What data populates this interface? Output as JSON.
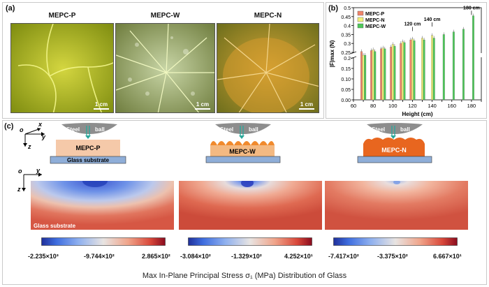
{
  "panel_a": {
    "label": "(a)",
    "photos": [
      {
        "title": "MEPC-P",
        "scale": "1 cm"
      },
      {
        "title": "MEPC-W",
        "scale": "1 cm"
      },
      {
        "title": "MEPC-N",
        "scale": "1 cm"
      }
    ]
  },
  "panel_b": {
    "label": "(b)"
  },
  "chart_data": {
    "type": "bar",
    "xlabel": "Height (cm)",
    "ylabel": "|F|max (N)",
    "xlim": [
      60,
      190
    ],
    "ylim": [
      0,
      0.5
    ],
    "axis_break": [
      0.2,
      0.25
    ],
    "xticks": [
      60,
      70,
      80,
      90,
      100,
      110,
      120,
      130,
      140,
      150,
      160,
      170,
      180,
      190
    ],
    "yticks": [
      0.0,
      0.05,
      0.1,
      0.15,
      0.2,
      0.25,
      0.3,
      0.35,
      0.4,
      0.45,
      0.5
    ],
    "legend_position": "top-left",
    "annotations": [
      "120 cm",
      "140 cm",
      "180 cm"
    ],
    "series": [
      {
        "name": "MEPC-P",
        "color": "#f0846a",
        "points": [
          [
            70,
            0.255
          ],
          [
            80,
            0.26
          ],
          [
            90,
            0.27
          ],
          [
            100,
            0.28
          ],
          [
            110,
            0.3
          ],
          [
            120,
            0.32
          ]
        ]
      },
      {
        "name": "MEPC-N",
        "color": "#f2f07a",
        "points": [
          [
            70,
            0.245
          ],
          [
            80,
            0.265
          ],
          [
            90,
            0.275
          ],
          [
            100,
            0.295
          ],
          [
            110,
            0.31
          ],
          [
            120,
            0.325
          ],
          [
            130,
            0.33
          ],
          [
            140,
            0.345
          ]
        ]
      },
      {
        "name": "MEPC-W",
        "color": "#4ec85a",
        "points": [
          [
            70,
            0.23
          ],
          [
            80,
            0.255
          ],
          [
            90,
            0.27
          ],
          [
            100,
            0.285
          ],
          [
            110,
            0.305
          ],
          [
            120,
            0.315
          ],
          [
            130,
            0.32
          ],
          [
            140,
            0.33
          ],
          [
            150,
            0.35
          ],
          [
            160,
            0.365
          ],
          [
            170,
            0.38
          ],
          [
            180,
            0.455
          ]
        ]
      }
    ]
  },
  "panel_c": {
    "label": "(c)",
    "axes": {
      "x": "x",
      "y": "y",
      "z": "z",
      "o": "o"
    },
    "schematics": [
      {
        "sample": "MEPC-P",
        "steel": "Steel",
        "ball": "ball",
        "substrate": "Glass substrate"
      },
      {
        "sample": "MEPC-W",
        "steel": "Steel",
        "ball": "ball"
      },
      {
        "sample": "MEPC-N",
        "steel": "Steel",
        "ball": "ball"
      }
    ],
    "map_substrate_label": "Glass substrate",
    "colorbars": [
      {
        "min": "-2.235×10³",
        "mid": "-9.744×10²",
        "max": "2.865×10²"
      },
      {
        "min": "-3.084×10²",
        "mid": "-1.329×10²",
        "max": "4.252×10¹"
      },
      {
        "min": "-7.417×10²",
        "mid": "-3.375×10²",
        "max": "6.667×10¹"
      }
    ],
    "caption": "Max In-Plane Principal Stress σ₁ (MPa) Distribution of Glass"
  }
}
